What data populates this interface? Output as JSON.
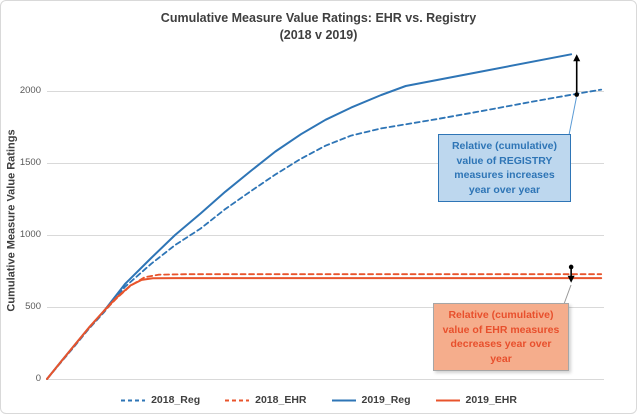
{
  "colors": {
    "background": "#FFFFFF",
    "frame_border": "#D9D9D9",
    "gridline": "#D9D9D9",
    "axis_line": "#D9D9D9",
    "title_text": "#3F3F3F",
    "tick_text": "#595959",
    "legend_text": "#3F3F3F",
    "registry_blue": "#2E75B6",
    "ehr_orange": "#E8542C",
    "arrow_black": "#000000"
  },
  "chart_data": {
    "type": "line",
    "title": "Cumulative Measure Value Ratings: EHR vs. Registry (2018 v 2019)",
    "title_lines": [
      "Cumulative Measure Value Ratings: EHR vs. Registry",
      "(2018 v 2019)"
    ],
    "xlabel": "",
    "ylabel": "Cumulative Measure Value Ratings",
    "ylim": [
      0,
      2330
    ],
    "yticks": [
      0,
      500,
      1000,
      1500,
      2000
    ],
    "grid": true,
    "legend_position": "bottom",
    "x_axis_note": "no x-axis tick labels shown; x = cumulative measure rank, normalized 0-1",
    "series": [
      {
        "name": "2018_Reg",
        "color": "#2E75B6",
        "dash": "dashed",
        "points": [
          [
            0,
            0
          ],
          [
            0.025,
            115
          ],
          [
            0.05,
            230
          ],
          [
            0.075,
            348
          ],
          [
            0.102,
            462
          ],
          [
            0.14,
            640
          ],
          [
            0.187,
            800
          ],
          [
            0.23,
            930
          ],
          [
            0.276,
            1045
          ],
          [
            0.32,
            1180
          ],
          [
            0.366,
            1305
          ],
          [
            0.41,
            1420
          ],
          [
            0.456,
            1530
          ],
          [
            0.5,
            1620
          ],
          [
            0.546,
            1690
          ],
          [
            0.6,
            1740
          ],
          [
            0.7,
            1805
          ],
          [
            0.779,
            1860
          ],
          [
            0.87,
            1925
          ],
          [
            0.95,
            1980
          ],
          [
            0.995,
            2010
          ]
        ]
      },
      {
        "name": "2018_EHR",
        "color": "#E8542C",
        "dash": "dashed",
        "points": [
          [
            0,
            0
          ],
          [
            0.025,
            118
          ],
          [
            0.05,
            235
          ],
          [
            0.075,
            352
          ],
          [
            0.102,
            468
          ],
          [
            0.125,
            560
          ],
          [
            0.15,
            648
          ],
          [
            0.175,
            706
          ],
          [
            0.2,
            724
          ],
          [
            0.25,
            728
          ],
          [
            0.45,
            728
          ],
          [
            0.7,
            728
          ],
          [
            0.995,
            728
          ]
        ]
      },
      {
        "name": "2019_Reg",
        "color": "#2E75B6",
        "dash": "solid",
        "points": [
          [
            0,
            0
          ],
          [
            0.025,
            120
          ],
          [
            0.05,
            237
          ],
          [
            0.075,
            355
          ],
          [
            0.102,
            470
          ],
          [
            0.14,
            660
          ],
          [
            0.187,
            840
          ],
          [
            0.23,
            1000
          ],
          [
            0.276,
            1150
          ],
          [
            0.32,
            1300
          ],
          [
            0.366,
            1445
          ],
          [
            0.41,
            1580
          ],
          [
            0.456,
            1700
          ],
          [
            0.5,
            1800
          ],
          [
            0.546,
            1885
          ],
          [
            0.6,
            1972
          ],
          [
            0.644,
            2035
          ],
          [
            0.779,
            2135
          ],
          [
            0.941,
            2255
          ]
        ]
      },
      {
        "name": "2019_EHR",
        "color": "#E8542C",
        "dash": "solid",
        "points": [
          [
            0,
            0
          ],
          [
            0.025,
            120
          ],
          [
            0.05,
            238
          ],
          [
            0.075,
            356
          ],
          [
            0.102,
            472
          ],
          [
            0.125,
            565
          ],
          [
            0.15,
            650
          ],
          [
            0.17,
            688
          ],
          [
            0.19,
            699
          ],
          [
            0.23,
            701
          ],
          [
            0.5,
            701
          ],
          [
            0.995,
            701
          ]
        ]
      }
    ],
    "annotations": [
      {
        "id": "registry",
        "text": "Relative (cumulative) value of REGISTRY measures increases year over year",
        "lines": [
          "Relative (cumulative)",
          "value of REGISTRY",
          "measures increases",
          "year over year"
        ],
        "fill": "#BDD7EE",
        "border": "#2E75B6",
        "text_color": "#2E75B6",
        "arrow": {
          "x": 0.951,
          "from_value": 1975,
          "to_value": 2255,
          "direction": "up",
          "color": "#000000"
        }
      },
      {
        "id": "ehr",
        "text": "Relative (cumulative) value of EHR measures decreases year over year",
        "lines": [
          "Relative (cumulative)",
          "value of EHR measures",
          "decreases year over",
          "year"
        ],
        "fill": "#F5AD8C",
        "border": "#A6A6A6",
        "text_color": "#E8502D",
        "arrow": {
          "x": 0.941,
          "from_value": 778,
          "to_value": 668,
          "direction": "down",
          "color": "#000000"
        }
      }
    ]
  }
}
